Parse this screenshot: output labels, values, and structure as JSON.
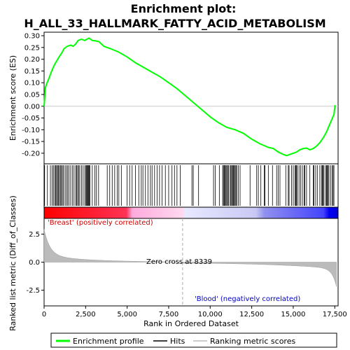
{
  "chart_data": {
    "type": "line",
    "title": "Enrichment plot:\nH_ALL_33_HALLMARK_FATTY_ACID_METABOLISM",
    "title_lines": [
      "Enrichment plot:",
      "H_ALL_33_HALLMARK_FATTY_ACID_METABOLISM"
    ],
    "xlabel": "Rank in Ordered Dataset",
    "ylabel_top": "Enrichment score (ES)",
    "ylabel_bottom": "Ranked list metric (Diff_of_Classes)",
    "x_range": [
      0,
      17700
    ],
    "x_ticks": [
      0,
      2500,
      5000,
      7500,
      10000,
      12500,
      15000,
      17500
    ],
    "x_tick_labels": [
      "0",
      "2,500",
      "5,000",
      "7,500",
      "10,000",
      "12,500",
      "15,000",
      "17,500"
    ],
    "es_ylim": [
      -0.245,
      0.315
    ],
    "es_ticks": [
      0.3,
      0.25,
      0.2,
      0.15,
      0.1,
      0.05,
      0.0,
      -0.05,
      -0.1,
      -0.15,
      -0.2
    ],
    "es_tick_labels": [
      "0.30",
      "0.25",
      "0.20",
      "0.15",
      "0.10",
      "0.05",
      "0.00",
      "-0.05",
      "-0.10",
      "-0.15",
      "-0.20"
    ],
    "metric_ylim": [
      -3.9,
      3.9
    ],
    "metric_ticks": [
      2.5,
      0.0,
      -2.5
    ],
    "metric_tick_labels": [
      "2.5",
      "0.0",
      "-2.5"
    ],
    "enrichment_profile": {
      "x": [
        0,
        80,
        180,
        300,
        400,
        520,
        650,
        780,
        900,
        1050,
        1200,
        1400,
        1600,
        1750,
        1900,
        2050,
        2250,
        2450,
        2700,
        2900,
        3100,
        3300,
        3600,
        4000,
        4500,
        5000,
        5500,
        6000,
        6500,
        7000,
        7500,
        8000,
        8500,
        9000,
        9500,
        10000,
        10500,
        11000,
        11500,
        12000,
        12500,
        13000,
        13500,
        13800,
        14100,
        14400,
        14600,
        14800,
        15000,
        15200,
        15400,
        15600,
        15800,
        16000,
        16200,
        16400,
        16600,
        16800,
        17000,
        17150,
        17300,
        17450,
        17520
      ],
      "y": [
        0.0,
        0.08,
        0.1,
        0.12,
        0.14,
        0.16,
        0.18,
        0.195,
        0.21,
        0.225,
        0.245,
        0.255,
        0.26,
        0.255,
        0.265,
        0.28,
        0.285,
        0.28,
        0.29,
        0.28,
        0.278,
        0.275,
        0.255,
        0.245,
        0.23,
        0.21,
        0.185,
        0.165,
        0.145,
        0.125,
        0.1,
        0.075,
        0.045,
        0.015,
        -0.015,
        -0.045,
        -0.07,
        -0.09,
        -0.1,
        -0.115,
        -0.14,
        -0.16,
        -0.175,
        -0.18,
        -0.195,
        -0.205,
        -0.21,
        -0.205,
        -0.2,
        -0.195,
        -0.185,
        -0.18,
        -0.178,
        -0.185,
        -0.18,
        -0.17,
        -0.155,
        -0.135,
        -0.11,
        -0.085,
        -0.06,
        -0.035,
        0.005
      ]
    },
    "hit_positions": [
      30,
      200,
      380,
      480,
      560,
      640,
      700,
      760,
      800,
      860,
      920,
      980,
      1040,
      1100,
      1160,
      1260,
      1340,
      1420,
      1500,
      1600,
      1700,
      1800,
      1900,
      1960,
      2020,
      2080,
      2150,
      2250,
      2350,
      2450,
      2520,
      2560,
      2600,
      2640,
      2680,
      2720,
      2760,
      2900,
      3050,
      3150,
      3280,
      3800,
      3950,
      4100,
      4250,
      4400,
      4500,
      4650,
      5000,
      5150,
      5300,
      5500,
      5700,
      5850,
      5950,
      6100,
      6250,
      6400,
      6500,
      6650,
      6800,
      6950,
      7100,
      7300,
      7500,
      7700,
      7850,
      8000,
      8200,
      8900,
      8980,
      9300,
      10200,
      10300,
      10550,
      10750,
      10800,
      10850,
      10900,
      10950,
      11000,
      11050,
      11100,
      11200,
      11250,
      11300,
      11350,
      11400,
      11450,
      11500,
      11550,
      11600,
      11700,
      11800,
      12400,
      12800,
      12900,
      13050,
      13250,
      13300,
      13500,
      13750,
      14000,
      14100,
      14200,
      14550,
      14700,
      14750,
      14900,
      15000,
      15100,
      15150,
      15200,
      15250,
      15350,
      15450,
      15550,
      15650,
      15700,
      15800,
      16000,
      16200,
      16250,
      16350,
      16450,
      16600,
      16700,
      16750,
      16800,
      16850,
      16950,
      17000,
      17050,
      17100,
      17150,
      17250,
      17350,
      17400,
      17450
    ],
    "zero_cross_x": 8339,
    "zero_cross_label": "Zero cross at 8339",
    "pos_class_label": "'Breast' (positively correlated)",
    "neg_class_label": "'Blood' (negatively correlated)",
    "legend": [
      {
        "label": "Enrichment profile",
        "color": "#00ff00"
      },
      {
        "label": "Hits",
        "color": "#000000"
      },
      {
        "label": "Ranking metric scores",
        "color": "#bbbbbb"
      }
    ],
    "colors": {
      "profile": "#00ff00",
      "pos_class": "#ff0000",
      "neg_class": "#0000ff",
      "metric_fill": "#bbbbbb"
    }
  }
}
